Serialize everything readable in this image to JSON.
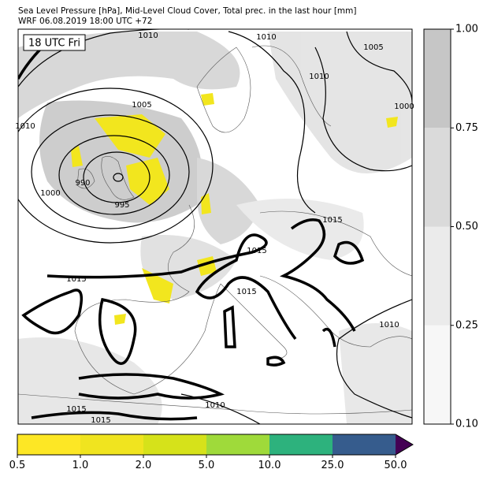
{
  "header": {
    "title": "Sea Level Pressure [hPa], Mid-Level Cloud Cover, Total prec. in the last hour [mm]",
    "subtitle": "WRF 06.08.2019 18:00 UTC +72"
  },
  "map": {
    "time_label": "18 UTC Fri",
    "contour_labels": [
      "1010",
      "1010",
      "1005",
      "1010",
      "1000",
      "1005",
      "1010",
      "990",
      "995",
      "1000",
      "1015",
      "1015",
      "1015",
      "1015",
      "1010",
      "1015",
      "1010",
      "1015"
    ]
  },
  "cloud_colorbar": {
    "ticks": [
      "0.10",
      "0.25",
      "0.50",
      "0.75",
      "1.00"
    ],
    "colors": [
      "#f7f7f7",
      "#ebebeb",
      "#dadada",
      "#c6c6c6"
    ]
  },
  "precip_colorbar": {
    "ticks": [
      "0.5",
      "1.0",
      "2.0",
      "5.0",
      "10.0",
      "25.0",
      "50.0"
    ],
    "colors": [
      "#fde725",
      "#f0e41f",
      "#d6e21a",
      "#9fda3a",
      "#2db27d",
      "#365c8d"
    ],
    "extend_color": "#440154"
  }
}
